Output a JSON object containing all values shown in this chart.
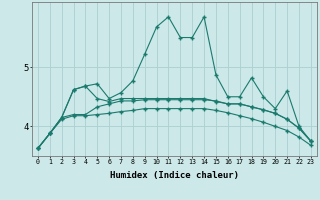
{
  "xlabel": "Humidex (Indice chaleur)",
  "x": [
    0,
    1,
    2,
    3,
    4,
    5,
    6,
    7,
    8,
    9,
    10,
    11,
    12,
    13,
    14,
    15,
    16,
    17,
    18,
    19,
    20,
    21,
    22,
    23
  ],
  "line1": [
    3.63,
    3.88,
    4.15,
    4.62,
    4.68,
    4.72,
    4.47,
    4.57,
    4.77,
    5.22,
    5.68,
    5.85,
    5.5,
    5.5,
    5.85,
    4.87,
    4.5,
    4.5,
    4.82,
    4.5,
    4.3,
    4.6,
    4.0,
    3.75
  ],
  "line2": [
    3.63,
    3.88,
    4.15,
    4.62,
    4.68,
    4.47,
    4.42,
    4.47,
    4.47,
    4.47,
    4.47,
    4.47,
    4.47,
    4.47,
    4.47,
    4.42,
    4.38,
    4.38,
    4.33,
    4.28,
    4.22,
    4.12,
    3.97,
    3.75
  ],
  "line3": [
    3.63,
    3.88,
    4.15,
    4.2,
    4.2,
    4.33,
    4.38,
    4.43,
    4.43,
    4.45,
    4.45,
    4.45,
    4.45,
    4.45,
    4.45,
    4.43,
    4.38,
    4.38,
    4.33,
    4.28,
    4.22,
    4.12,
    3.97,
    3.75
  ],
  "line4": [
    3.63,
    3.88,
    4.12,
    4.18,
    4.18,
    4.2,
    4.22,
    4.25,
    4.27,
    4.3,
    4.3,
    4.3,
    4.3,
    4.3,
    4.3,
    4.27,
    4.23,
    4.18,
    4.13,
    4.07,
    4.0,
    3.93,
    3.82,
    3.68
  ],
  "line_color": "#1a7a6e",
  "bg_color": "#cce8e8",
  "grid_color": "#aad0d0",
  "ylim": [
    3.5,
    6.1
  ],
  "yticks": [
    4,
    5
  ],
  "xlim": [
    -0.5,
    23.5
  ],
  "figsize": [
    3.2,
    2.0
  ],
  "dpi": 100
}
